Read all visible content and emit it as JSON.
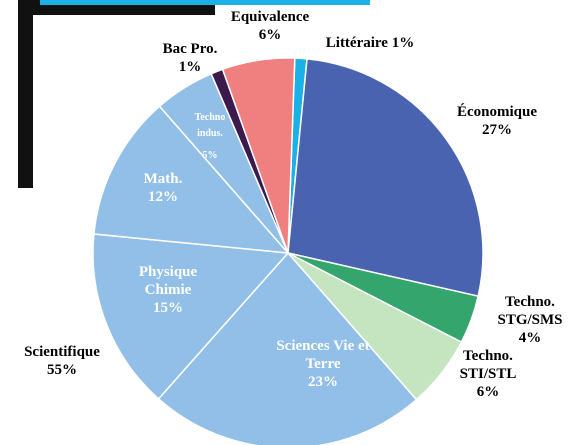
{
  "chart_data": {
    "type": "pie",
    "categories": [
      "Littéraire",
      "Économique",
      "Techno. STG/SMS",
      "Techno. STI/STL",
      "Sciences Vie et Terre",
      "Physique Chimie",
      "Math.",
      "Techno indus.",
      "Bac Pro.",
      "Equivalence"
    ],
    "values": [
      1,
      27,
      4,
      6,
      23,
      15,
      12,
      5,
      1,
      6
    ],
    "value_labels": [
      "1%",
      "27%",
      "4%",
      "6%",
      "23%",
      "15%",
      "12%",
      "5%",
      "1%",
      "6%"
    ],
    "colors": [
      "#1ab0e8",
      "#4a63b0",
      "#35a56e",
      "#c5e4c0",
      "#91bfe8",
      "#91bfe8",
      "#91bfe8",
      "#91bfe8",
      "#3c1a4e",
      "#f08080"
    ],
    "annotation": "Scientifique",
    "annotation_value": "55%"
  }
}
